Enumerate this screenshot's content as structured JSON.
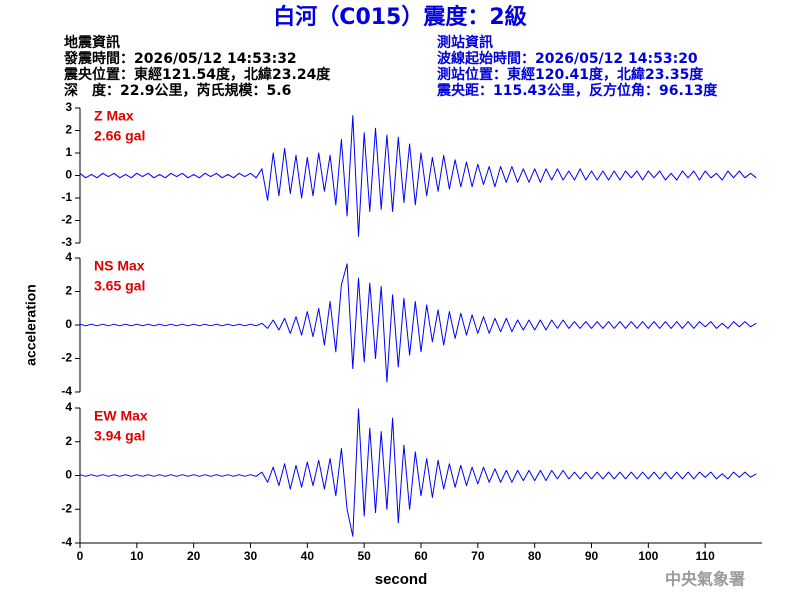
{
  "header": {
    "title": "白河（C015）震度：2級",
    "event": [
      "地震資訊",
      "發震時間：2026/05/12 14:53:32",
      "震央位置：東經121.54度，北緯23.24度",
      "深　度：22.9公里，芮氏規模：5.6"
    ],
    "station": [
      "測站資訊",
      "波線起始時間：2026/05/12 14:53:20",
      "測站位置：東經120.41度，北緯23.35度",
      "震央距：115.43公里，反方位角：96.13度"
    ],
    "footer": "中央氣象署"
  },
  "chart_data": [
    {
      "type": "line",
      "annotation": [
        "Z Max",
        "2.66 gal"
      ],
      "color": "#0000ff",
      "annotation_color": "#e00000",
      "x": [
        0,
        1,
        2,
        3,
        4,
        5,
        6,
        7,
        8,
        9,
        10,
        11,
        12,
        13,
        14,
        15,
        16,
        17,
        18,
        19,
        20,
        21,
        22,
        23,
        24,
        25,
        26,
        27,
        28,
        29,
        30,
        31,
        32,
        33,
        34,
        35,
        36,
        37,
        38,
        39,
        40,
        41,
        42,
        43,
        44,
        45,
        46,
        47,
        48,
        49,
        50,
        51,
        52,
        53,
        54,
        55,
        56,
        57,
        58,
        59,
        60,
        61,
        62,
        63,
        64,
        65,
        66,
        67,
        68,
        69,
        70,
        71,
        72,
        73,
        74,
        75,
        76,
        77,
        78,
        79,
        80,
        81,
        82,
        83,
        84,
        85,
        86,
        87,
        88,
        89,
        90,
        91,
        92,
        93,
        94,
        95,
        96,
        97,
        98,
        99,
        100,
        101,
        102,
        103,
        104,
        105,
        106,
        107,
        108,
        109,
        110,
        111,
        112,
        113,
        114,
        115,
        116,
        117,
        118,
        119
      ],
      "values": [
        0.1,
        -0.1,
        0.05,
        -0.1,
        0.1,
        -0.05,
        0.1,
        -0.1,
        0.05,
        -0.1,
        0.1,
        -0.05,
        0.1,
        -0.1,
        0.05,
        -0.1,
        0.1,
        -0.05,
        0.1,
        -0.1,
        0.05,
        -0.1,
        0.1,
        -0.05,
        0.1,
        -0.1,
        0.05,
        -0.1,
        0.1,
        -0.05,
        0.1,
        -0.1,
        0.3,
        -1.1,
        1.0,
        -0.9,
        1.2,
        -0.8,
        0.9,
        -1.0,
        0.8,
        -0.9,
        1.0,
        -0.7,
        0.9,
        -1.3,
        1.6,
        -1.8,
        2.66,
        -2.7,
        1.9,
        -1.6,
        2.1,
        -1.5,
        1.8,
        -1.6,
        1.7,
        -1.2,
        1.4,
        -1.3,
        1.0,
        -0.9,
        0.8,
        -0.7,
        0.9,
        -0.6,
        0.7,
        -0.5,
        0.6,
        -0.5,
        0.5,
        -0.4,
        0.4,
        -0.5,
        0.4,
        -0.3,
        0.4,
        -0.3,
        0.3,
        -0.3,
        0.3,
        -0.3,
        0.3,
        -0.2,
        0.3,
        -0.2,
        0.2,
        -0.2,
        0.3,
        -0.2,
        0.2,
        -0.2,
        0.2,
        -0.2,
        0.2,
        -0.2,
        0.2,
        -0.1,
        0.2,
        -0.2,
        0.2,
        -0.1,
        0.2,
        -0.2,
        0.1,
        -0.2,
        0.2,
        -0.1,
        0.2,
        -0.2,
        0.2,
        -0.1,
        0.1,
        -0.2,
        0.2,
        -0.1,
        0.2,
        -0.1,
        0.1,
        -0.1
      ],
      "xlim": [
        0,
        120
      ],
      "ylim": [
        -3,
        3
      ],
      "yticks": [
        -3,
        -2,
        -1,
        0,
        1,
        2,
        3
      ]
    },
    {
      "type": "line",
      "annotation": [
        "NS Max",
        "3.65 gal"
      ],
      "color": "#0000ff",
      "annotation_color": "#e00000",
      "ylabel": "acceleration",
      "x": [
        0,
        1,
        2,
        3,
        4,
        5,
        6,
        7,
        8,
        9,
        10,
        11,
        12,
        13,
        14,
        15,
        16,
        17,
        18,
        19,
        20,
        21,
        22,
        23,
        24,
        25,
        26,
        27,
        28,
        29,
        30,
        31,
        32,
        33,
        34,
        35,
        36,
        37,
        38,
        39,
        40,
        41,
        42,
        43,
        44,
        45,
        46,
        47,
        48,
        49,
        50,
        51,
        52,
        53,
        54,
        55,
        56,
        57,
        58,
        59,
        60,
        61,
        62,
        63,
        64,
        65,
        66,
        67,
        68,
        69,
        70,
        71,
        72,
        73,
        74,
        75,
        76,
        77,
        78,
        79,
        80,
        81,
        82,
        83,
        84,
        85,
        86,
        87,
        88,
        89,
        90,
        91,
        92,
        93,
        94,
        95,
        96,
        97,
        98,
        99,
        100,
        101,
        102,
        103,
        104,
        105,
        106,
        107,
        108,
        109,
        110,
        111,
        112,
        113,
        114,
        115,
        116,
        117,
        118,
        119
      ],
      "values": [
        0.05,
        -0.05,
        0.05,
        -0.05,
        0.05,
        -0.05,
        0.05,
        -0.05,
        0.05,
        -0.05,
        0.05,
        -0.05,
        0.05,
        -0.05,
        0.05,
        -0.05,
        0.05,
        -0.05,
        0.05,
        -0.05,
        0.05,
        -0.05,
        0.05,
        -0.05,
        0.05,
        -0.05,
        0.05,
        -0.05,
        0.05,
        -0.05,
        0.05,
        -0.05,
        0.1,
        -0.2,
        0.3,
        -0.3,
        0.4,
        -0.5,
        0.5,
        -0.6,
        0.8,
        -0.7,
        1.0,
        -1.2,
        1.4,
        -1.6,
        2.4,
        3.65,
        -2.6,
        2.8,
        -2.2,
        2.5,
        -2.0,
        2.3,
        -3.4,
        1.8,
        -2.5,
        1.6,
        -1.8,
        1.4,
        -1.6,
        1.2,
        -1.0,
        0.9,
        -1.2,
        0.8,
        -0.8,
        0.7,
        -0.6,
        0.6,
        -0.5,
        0.5,
        -0.5,
        0.4,
        -0.4,
        0.4,
        -0.4,
        0.3,
        -0.3,
        0.3,
        -0.3,
        0.3,
        -0.3,
        0.3,
        -0.2,
        0.3,
        -0.2,
        0.2,
        -0.2,
        0.2,
        -0.2,
        0.2,
        -0.2,
        0.2,
        -0.2,
        0.2,
        -0.2,
        0.2,
        -0.2,
        0.2,
        -0.2,
        0.2,
        -0.2,
        0.2,
        -0.2,
        0.2,
        -0.2,
        0.2,
        -0.2,
        0.2,
        -0.1,
        0.2,
        -0.2,
        0.1,
        -0.2,
        0.2,
        -0.1,
        0.2,
        -0.1,
        0.1
      ],
      "xlim": [
        0,
        120
      ],
      "ylim": [
        -4,
        4
      ],
      "yticks": [
        -4,
        -2,
        0,
        2,
        4
      ]
    },
    {
      "type": "line",
      "annotation": [
        "EW Max",
        "3.94 gal"
      ],
      "color": "#0000ff",
      "annotation_color": "#e00000",
      "xlabel": "second",
      "x": [
        0,
        1,
        2,
        3,
        4,
        5,
        6,
        7,
        8,
        9,
        10,
        11,
        12,
        13,
        14,
        15,
        16,
        17,
        18,
        19,
        20,
        21,
        22,
        23,
        24,
        25,
        26,
        27,
        28,
        29,
        30,
        31,
        32,
        33,
        34,
        35,
        36,
        37,
        38,
        39,
        40,
        41,
        42,
        43,
        44,
        45,
        46,
        47,
        48,
        49,
        50,
        51,
        52,
        53,
        54,
        55,
        56,
        57,
        58,
        59,
        60,
        61,
        62,
        63,
        64,
        65,
        66,
        67,
        68,
        69,
        70,
        71,
        72,
        73,
        74,
        75,
        76,
        77,
        78,
        79,
        80,
        81,
        82,
        83,
        84,
        85,
        86,
        87,
        88,
        89,
        90,
        91,
        92,
        93,
        94,
        95,
        96,
        97,
        98,
        99,
        100,
        101,
        102,
        103,
        104,
        105,
        106,
        107,
        108,
        109,
        110,
        111,
        112,
        113,
        114,
        115,
        116,
        117,
        118,
        119
      ],
      "values": [
        0.05,
        -0.05,
        0.05,
        -0.05,
        0.05,
        -0.05,
        0.05,
        -0.05,
        0.05,
        -0.05,
        0.05,
        -0.05,
        0.05,
        -0.05,
        0.05,
        -0.05,
        0.05,
        -0.05,
        0.05,
        -0.05,
        0.05,
        -0.05,
        0.05,
        -0.05,
        0.05,
        -0.05,
        0.05,
        -0.05,
        0.05,
        -0.05,
        0.05,
        -0.05,
        0.2,
        -0.4,
        0.5,
        -0.6,
        0.7,
        -0.8,
        0.6,
        -0.7,
        0.8,
        -0.6,
        0.9,
        -0.8,
        1.0,
        -1.2,
        1.6,
        -2.0,
        -3.6,
        3.94,
        -2.4,
        2.8,
        -2.2,
        2.6,
        -2.0,
        3.4,
        -2.8,
        1.8,
        -2.0,
        1.4,
        -1.2,
        1.0,
        -1.3,
        0.9,
        -0.8,
        0.7,
        -0.7,
        0.6,
        -0.6,
        0.5,
        -0.5,
        0.5,
        -0.4,
        0.4,
        -0.4,
        0.3,
        -0.4,
        0.3,
        -0.3,
        0.3,
        -0.3,
        0.3,
        -0.3,
        0.3,
        -0.2,
        0.3,
        -0.2,
        0.2,
        -0.2,
        0.2,
        -0.2,
        0.2,
        -0.2,
        0.2,
        -0.2,
        0.2,
        -0.2,
        0.2,
        -0.2,
        0.2,
        -0.2,
        0.2,
        -0.2,
        0.2,
        -0.2,
        0.2,
        -0.2,
        0.2,
        -0.2,
        0.2,
        -0.1,
        0.2,
        -0.2,
        0.1,
        -0.2,
        0.2,
        -0.1,
        0.2,
        -0.1,
        0.1
      ],
      "xlim": [
        0,
        120
      ],
      "ylim": [
        -4,
        4
      ],
      "yticks": [
        -4,
        -2,
        0,
        2,
        4
      ],
      "xticks": [
        0,
        10,
        20,
        30,
        40,
        50,
        60,
        70,
        80,
        90,
        100,
        110
      ]
    }
  ]
}
